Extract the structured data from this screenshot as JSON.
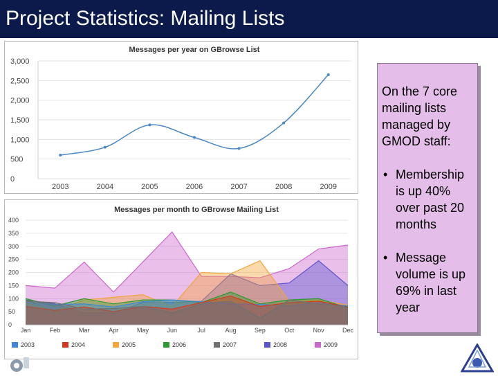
{
  "header": {
    "title": "Project Statistics:  Mailing Lists"
  },
  "note": {
    "intro": "On the 7 core mailing lists managed by GMOD staff:",
    "bullets": [
      "Membership is up 40% over past 20 months",
      "Message volume is up 69% in last year"
    ]
  },
  "colors": {
    "title_bg": "#0b1a4a",
    "note_bg": "#e4bde8"
  },
  "chart_data": [
    {
      "type": "line",
      "title": "Messages per year on GBrowse List",
      "categories": [
        "2003",
        "2004",
        "2005",
        "2006",
        "2007",
        "2008",
        "2009"
      ],
      "values": [
        600,
        800,
        1370,
        1050,
        770,
        1420,
        2650
      ],
      "ylim": [
        0,
        3000
      ],
      "yticks": [
        0,
        500,
        1000,
        1500,
        2000,
        2500,
        3000
      ],
      "ytick_labels": [
        "0",
        "500",
        "1,000",
        "1,500",
        "2,000",
        "2,500",
        "3,000"
      ],
      "color": "#4a87c4",
      "grid": true,
      "xlabel": "",
      "ylabel": ""
    },
    {
      "type": "area",
      "title": "Messages per month to GBrowse Mailing List",
      "categories": [
        "Jan",
        "Feb",
        "Mar",
        "Apr",
        "May",
        "Jun",
        "Jul",
        "Aug",
        "Sep",
        "Oct",
        "Nov",
        "Dec"
      ],
      "ylim": [
        0,
        400
      ],
      "yticks": [
        0,
        50,
        100,
        150,
        200,
        250,
        300,
        350,
        400
      ],
      "legend_position": "bottom",
      "series": [
        {
          "name": "2003",
          "color": "#3f87d6",
          "values": [
            85,
            78,
            80,
            68,
            88,
            95,
            88,
            80,
            78,
            72,
            85,
            72
          ]
        },
        {
          "name": "2004",
          "color": "#d33a1c",
          "values": [
            70,
            55,
            68,
            50,
            70,
            60,
            85,
            110,
            70,
            85,
            90,
            68
          ]
        },
        {
          "name": "2005",
          "color": "#f2a53a",
          "values": [
            85,
            52,
            95,
            105,
            115,
            70,
            200,
            195,
            245,
            90,
            95,
            75
          ]
        },
        {
          "name": "2006",
          "color": "#2f9a2f",
          "values": [
            100,
            72,
            100,
            80,
            95,
            95,
            85,
            125,
            80,
            95,
            100,
            65
          ]
        },
        {
          "name": "2007",
          "color": "#707070",
          "values": [
            90,
            85,
            60,
            62,
            70,
            45,
            80,
            90,
            25,
            95,
            80,
            70
          ]
        },
        {
          "name": "2008",
          "color": "#5a55cc",
          "values": [
            95,
            80,
            45,
            45,
            85,
            85,
            90,
            195,
            150,
            160,
            245,
            150
          ]
        },
        {
          "name": "2009",
          "color": "#cc66cc",
          "values": [
            150,
            140,
            240,
            125,
            240,
            355,
            185,
            185,
            180,
            215,
            290,
            305
          ]
        }
      ]
    }
  ]
}
